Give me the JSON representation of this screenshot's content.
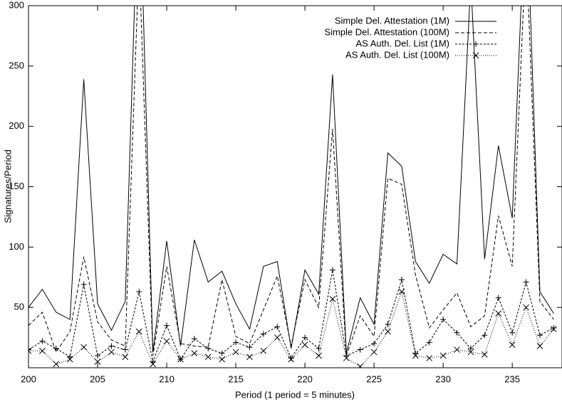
{
  "chart_data": {
    "type": "line",
    "xlabel": "Period (1 period = 5 minutes)",
    "ylabel": "Signatures/Period",
    "x": [
      200,
      201,
      202,
      203,
      204,
      205,
      206,
      207,
      208,
      209,
      210,
      211,
      212,
      213,
      214,
      215,
      216,
      217,
      218,
      219,
      220,
      221,
      222,
      223,
      224,
      225,
      226,
      227,
      228,
      229,
      230,
      231,
      232,
      233,
      234,
      235,
      236,
      237,
      238
    ],
    "series": [
      {
        "name": "Simple Del. Attestation (1M)",
        "color": "#000000",
        "dash": "none",
        "marker": "none",
        "values": [
          50,
          65,
          46,
          40,
          239,
          53,
          31,
          55,
          420,
          13,
          105,
          18,
          106,
          71,
          80,
          53,
          32,
          84,
          88,
          16,
          81,
          61,
          243,
          12,
          58,
          36,
          178,
          167,
          88,
          70,
          94,
          86,
          320,
          90,
          184,
          124,
          400,
          63,
          45
        ]
      },
      {
        "name": "Simple Del. Attestation (100M)",
        "color": "#000000",
        "dash": "5,3",
        "marker": "none",
        "values": [
          35,
          46,
          13,
          30,
          92,
          38,
          23,
          18,
          340,
          10,
          84,
          20,
          18,
          17,
          73,
          26,
          20,
          48,
          76,
          18,
          73,
          50,
          198,
          10,
          43,
          26,
          157,
          152,
          77,
          33,
          48,
          62,
          34,
          43,
          126,
          84,
          350,
          55,
          40
        ]
      },
      {
        "name": "AS Auth. Del. List (1M)",
        "color": "#000000",
        "dash": "3,2",
        "marker": "plus",
        "values": [
          15,
          22,
          16,
          9,
          69,
          10,
          18,
          15,
          63,
          5,
          35,
          7,
          24,
          16,
          12,
          21,
          17,
          28,
          34,
          8,
          25,
          16,
          81,
          10,
          15,
          20,
          36,
          73,
          12,
          21,
          40,
          29,
          16,
          27,
          58,
          29,
          71,
          27,
          33
        ]
      },
      {
        "name": "AS Auth. Del. List (100M)",
        "color": "#000000",
        "dash": "1,2",
        "marker": "cross",
        "values": [
          14,
          14,
          3,
          7,
          17,
          5,
          13,
          9,
          30,
          3,
          22,
          7,
          12,
          9,
          7,
          13,
          9,
          14,
          25,
          7,
          19,
          10,
          57,
          8,
          1,
          13,
          30,
          63,
          10,
          8,
          10,
          15,
          13,
          11,
          45,
          19,
          50,
          18,
          32
        ]
      }
    ],
    "xlim": [
      200,
      238.6
    ],
    "xticks": [
      200,
      205,
      210,
      215,
      220,
      225,
      230,
      235
    ],
    "ylim": [
      0,
      300
    ],
    "yticks": [
      50,
      100,
      150,
      200,
      250,
      300
    ],
    "legend": "top-right"
  }
}
